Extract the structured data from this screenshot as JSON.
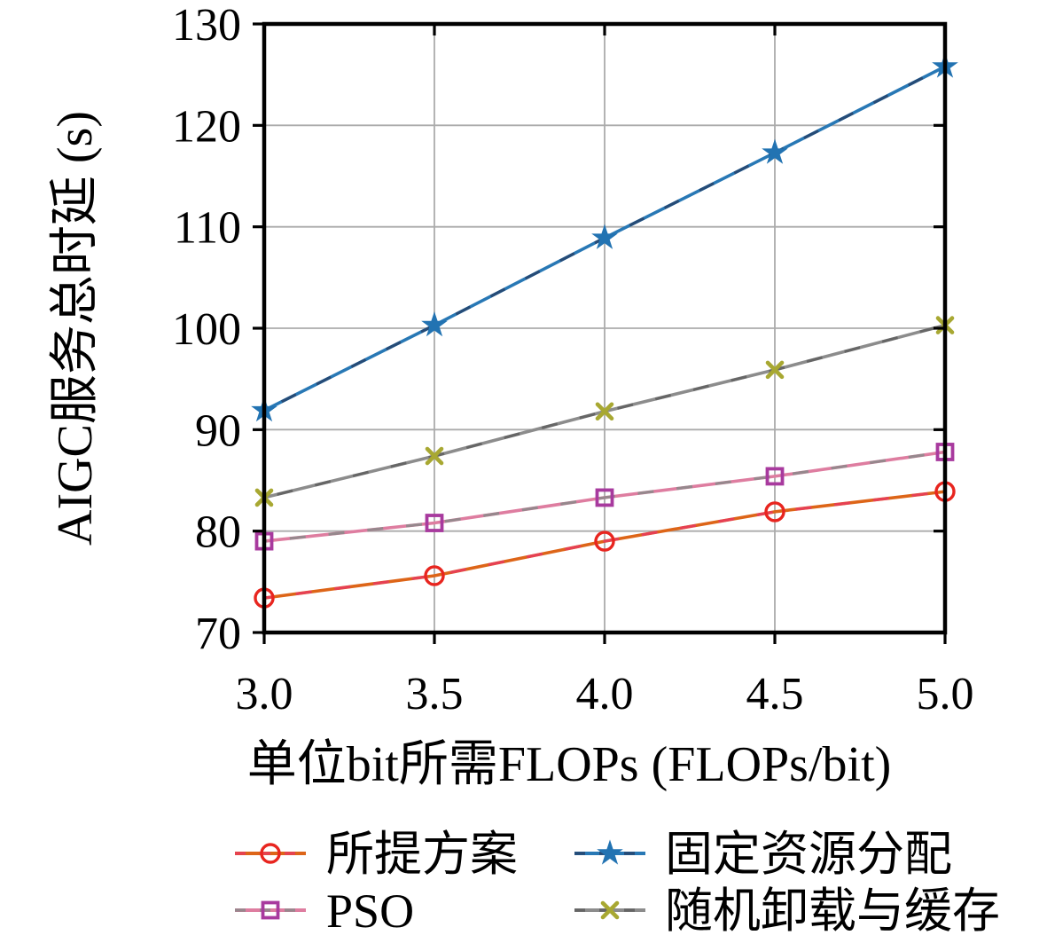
{
  "chart_data": {
    "type": "line",
    "title": "",
    "xlabel": "单位bit所需FLOPs (FLOPs/bit)",
    "ylabel": "AIGC服务总时延 (s)",
    "x": [
      3.0,
      3.5,
      4.0,
      4.5,
      5.0
    ],
    "xticks": [
      "3.0",
      "3.5",
      "4.0",
      "4.5",
      "5.0"
    ],
    "yticks": [
      70,
      80,
      90,
      100,
      110,
      120,
      130
    ],
    "xlim": [
      3.0,
      5.0
    ],
    "ylim": [
      70,
      130
    ],
    "grid": true,
    "legend_position": "below-two-columns",
    "series": [
      {
        "name": "所提方案",
        "marker": "circle",
        "line_color": "#dd6518",
        "overlay_color": "#e83a5f",
        "marker_color": "#e8251f",
        "values": [
          73.4,
          75.6,
          79.0,
          81.9,
          83.9
        ]
      },
      {
        "name": "PSO",
        "marker": "square",
        "line_color": "#de7da0",
        "overlay_color": "#8a8a8a",
        "marker_color": "#a83a9e",
        "values": [
          79.0,
          80.8,
          83.3,
          85.4,
          87.8
        ]
      },
      {
        "name": "固定资源分配",
        "marker": "star",
        "line_color": "#2878b5",
        "overlay_color": "#26436b",
        "marker_color": "#2273b2",
        "values": [
          91.9,
          100.3,
          108.9,
          117.3,
          125.8
        ]
      },
      {
        "name": "随机卸载与缓存",
        "marker": "x",
        "line_color": "#8c8c8c",
        "overlay_color": "#5f5f5f",
        "marker_color": "#a8a832",
        "values": [
          83.3,
          87.4,
          91.8,
          95.9,
          100.3
        ]
      }
    ],
    "colors": {
      "grid": "#ababab",
      "frame": "#000000",
      "background": "#ffffff",
      "text": "#000000"
    }
  }
}
